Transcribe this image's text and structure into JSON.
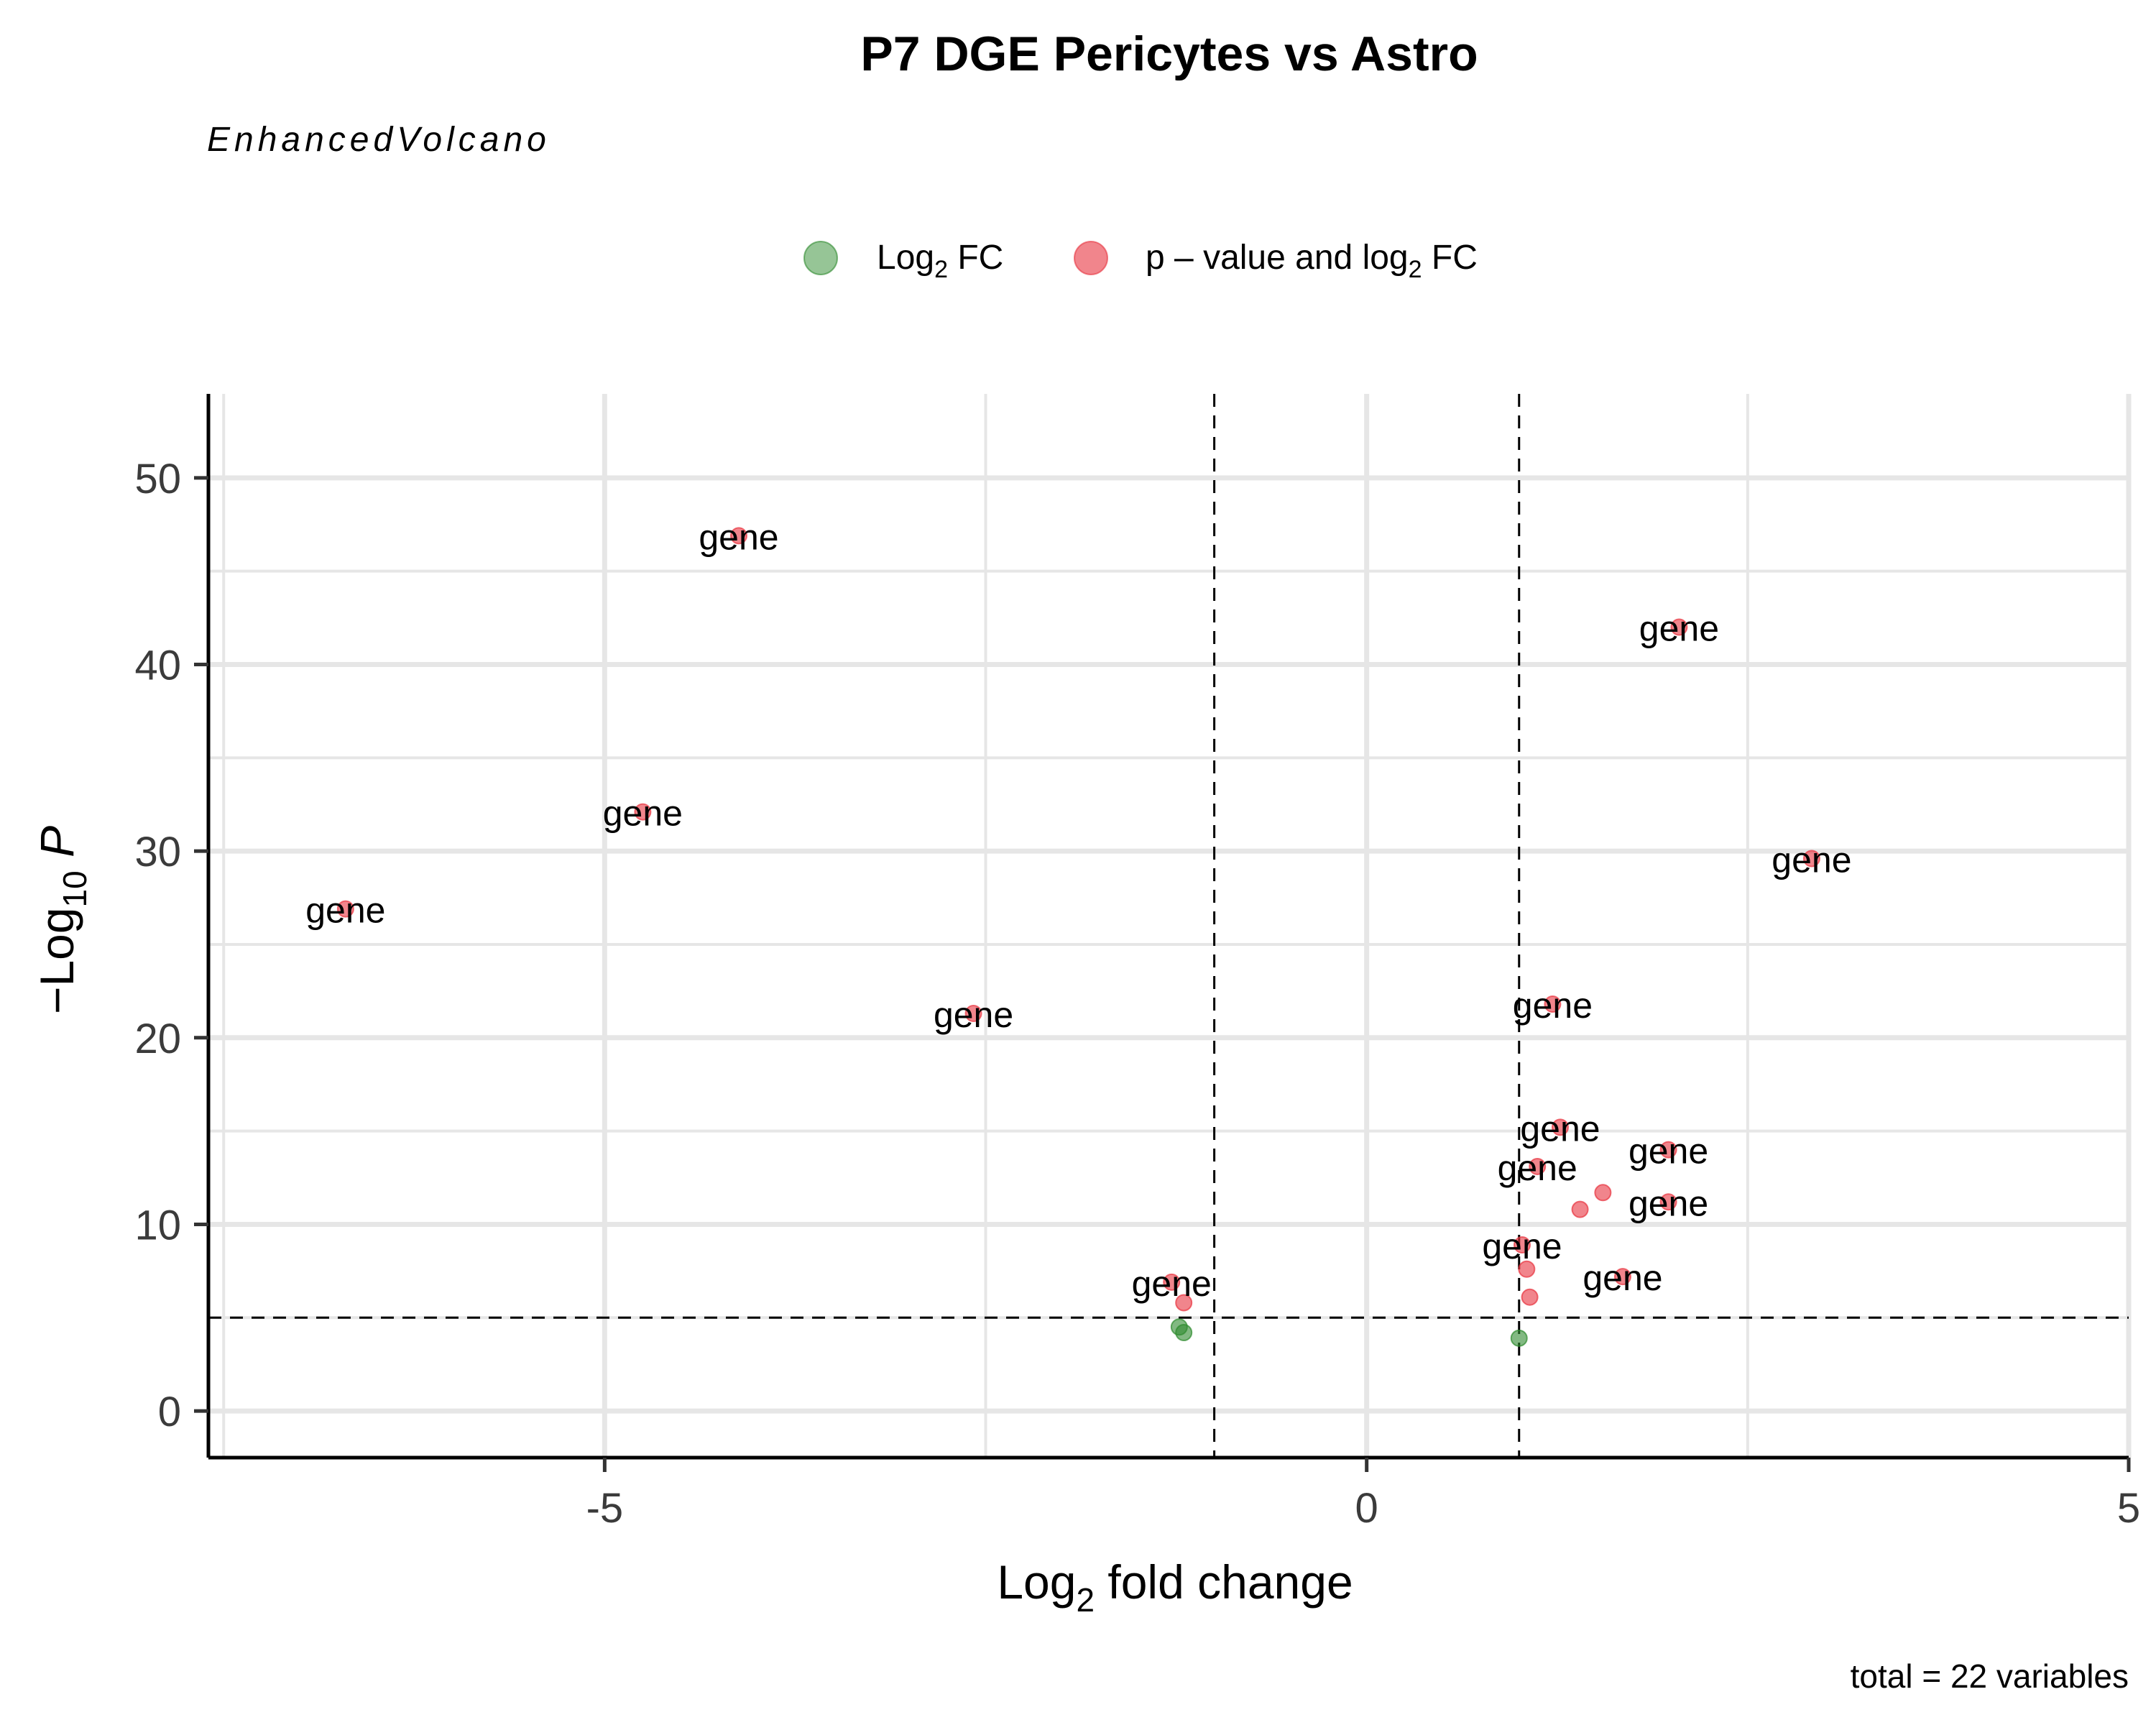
{
  "chart_data": {
    "type": "scatter",
    "title": "P7 DGE Pericytes vs Astro",
    "subtitle": "EnhancedVolcano",
    "caption": "total = 22 variables",
    "xlabel": "Log2 fold change",
    "ylabel": "−Log10 P",
    "xlim": [
      -7.6,
      5
    ],
    "ylim": [
      -2.5,
      54.5
    ],
    "xticks": [
      -5,
      0,
      5
    ],
    "xtick_labels": [
      "-5",
      "0",
      "5"
    ],
    "yticks": [
      0,
      10,
      20,
      30,
      40,
      50
    ],
    "ytick_labels": [
      "0",
      "10",
      "20",
      "30",
      "40",
      "50"
    ],
    "x_minor_gridlines": [
      -7.5,
      -2.5,
      2.5
    ],
    "y_minor_gridlines": [
      5,
      15,
      25,
      35,
      45
    ],
    "grid": true,
    "fc_cutoff": 1,
    "p_cutoff_neglog10": 5,
    "legend_position": "top",
    "legend": [
      {
        "label": "Log2 FC",
        "color": "#2e8b2e"
      },
      {
        "label": "p – value and log2 FC",
        "color": "#e8333f"
      }
    ],
    "point_label_text": "gene",
    "series": [
      {
        "name": "Log2 FC",
        "color": "#2e8b2e",
        "points": [
          {
            "x": -1.23,
            "y": 4.5
          },
          {
            "x": -1.2,
            "y": 4.2
          },
          {
            "x": 1.0,
            "y": 3.9
          }
        ]
      },
      {
        "name": "p – value and log2 FC",
        "color": "#e8333f",
        "points": [
          {
            "x": -4.12,
            "y": 46.9,
            "label": "gene"
          },
          {
            "x": 2.05,
            "y": 42.0,
            "label": "gene"
          },
          {
            "x": -4.75,
            "y": 32.1,
            "label": "gene"
          },
          {
            "x": 2.92,
            "y": 29.6,
            "label": "gene"
          },
          {
            "x": -6.7,
            "y": 26.9,
            "label": "gene"
          },
          {
            "x": -2.58,
            "y": 21.3,
            "label": "gene"
          },
          {
            "x": 1.22,
            "y": 21.8,
            "label": "gene"
          },
          {
            "x": 1.27,
            "y": 15.2,
            "label": "gene"
          },
          {
            "x": 1.98,
            "y": 14.0,
            "label": "gene"
          },
          {
            "x": 1.12,
            "y": 13.1,
            "label": "gene"
          },
          {
            "x": 1.55,
            "y": 11.7
          },
          {
            "x": 1.98,
            "y": 11.2,
            "label": "gene"
          },
          {
            "x": 1.4,
            "y": 10.8
          },
          {
            "x": 1.02,
            "y": 8.9,
            "label": "gene"
          },
          {
            "x": 1.05,
            "y": 7.6
          },
          {
            "x": 1.68,
            "y": 7.2,
            "label": "gene"
          },
          {
            "x": -1.28,
            "y": 6.9,
            "label": "gene"
          },
          {
            "x": -1.2,
            "y": 5.8
          },
          {
            "x": 1.07,
            "y": 6.1
          }
        ]
      }
    ]
  }
}
